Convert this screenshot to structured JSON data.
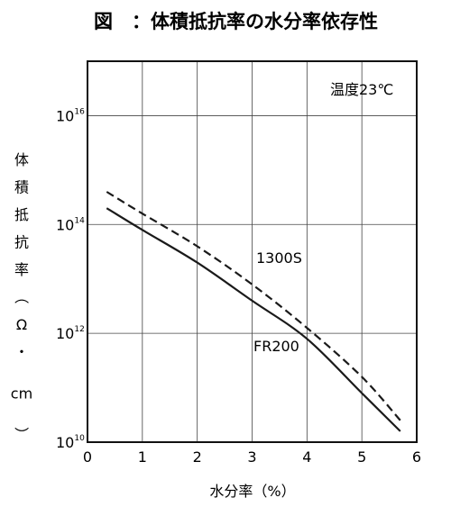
{
  "chart_data": {
    "type": "line",
    "title": "図　：体積抵抗率の水分率依存性",
    "xlabel": "水分率（%）",
    "ylabel": "体積抵抗率（Ω・cm）",
    "annotation": "温度23℃",
    "xlim": [
      0,
      6
    ],
    "ylim_log10": [
      10,
      17
    ],
    "yscale": "log",
    "grid": true,
    "x_ticks": [
      "0",
      "1",
      "2",
      "3",
      "4",
      "5",
      "6"
    ],
    "y_ticks": [
      {
        "base": "10",
        "exp": "10",
        "value": 10
      },
      {
        "base": "10",
        "exp": "12",
        "value": 12
      },
      {
        "base": "10",
        "exp": "14",
        "value": 14
      },
      {
        "base": "10",
        "exp": "16",
        "value": 16
      }
    ],
    "series": [
      {
        "name": "1300S",
        "style": "dashed",
        "x": [
          0.35,
          1,
          2,
          3,
          4,
          5,
          5.7
        ],
        "log10_y": [
          14.6,
          14.2,
          13.6,
          12.9,
          12.1,
          11.2,
          10.4
        ]
      },
      {
        "name": "FR200",
        "style": "solid",
        "x": [
          0.35,
          1,
          2,
          3,
          4,
          5,
          5.7
        ],
        "log10_y": [
          14.3,
          13.9,
          13.3,
          12.6,
          11.9,
          10.9,
          10.2
        ]
      }
    ]
  },
  "colors": {
    "line": "#1a1a1a",
    "grid": "#444444",
    "background": "#ffffff"
  }
}
